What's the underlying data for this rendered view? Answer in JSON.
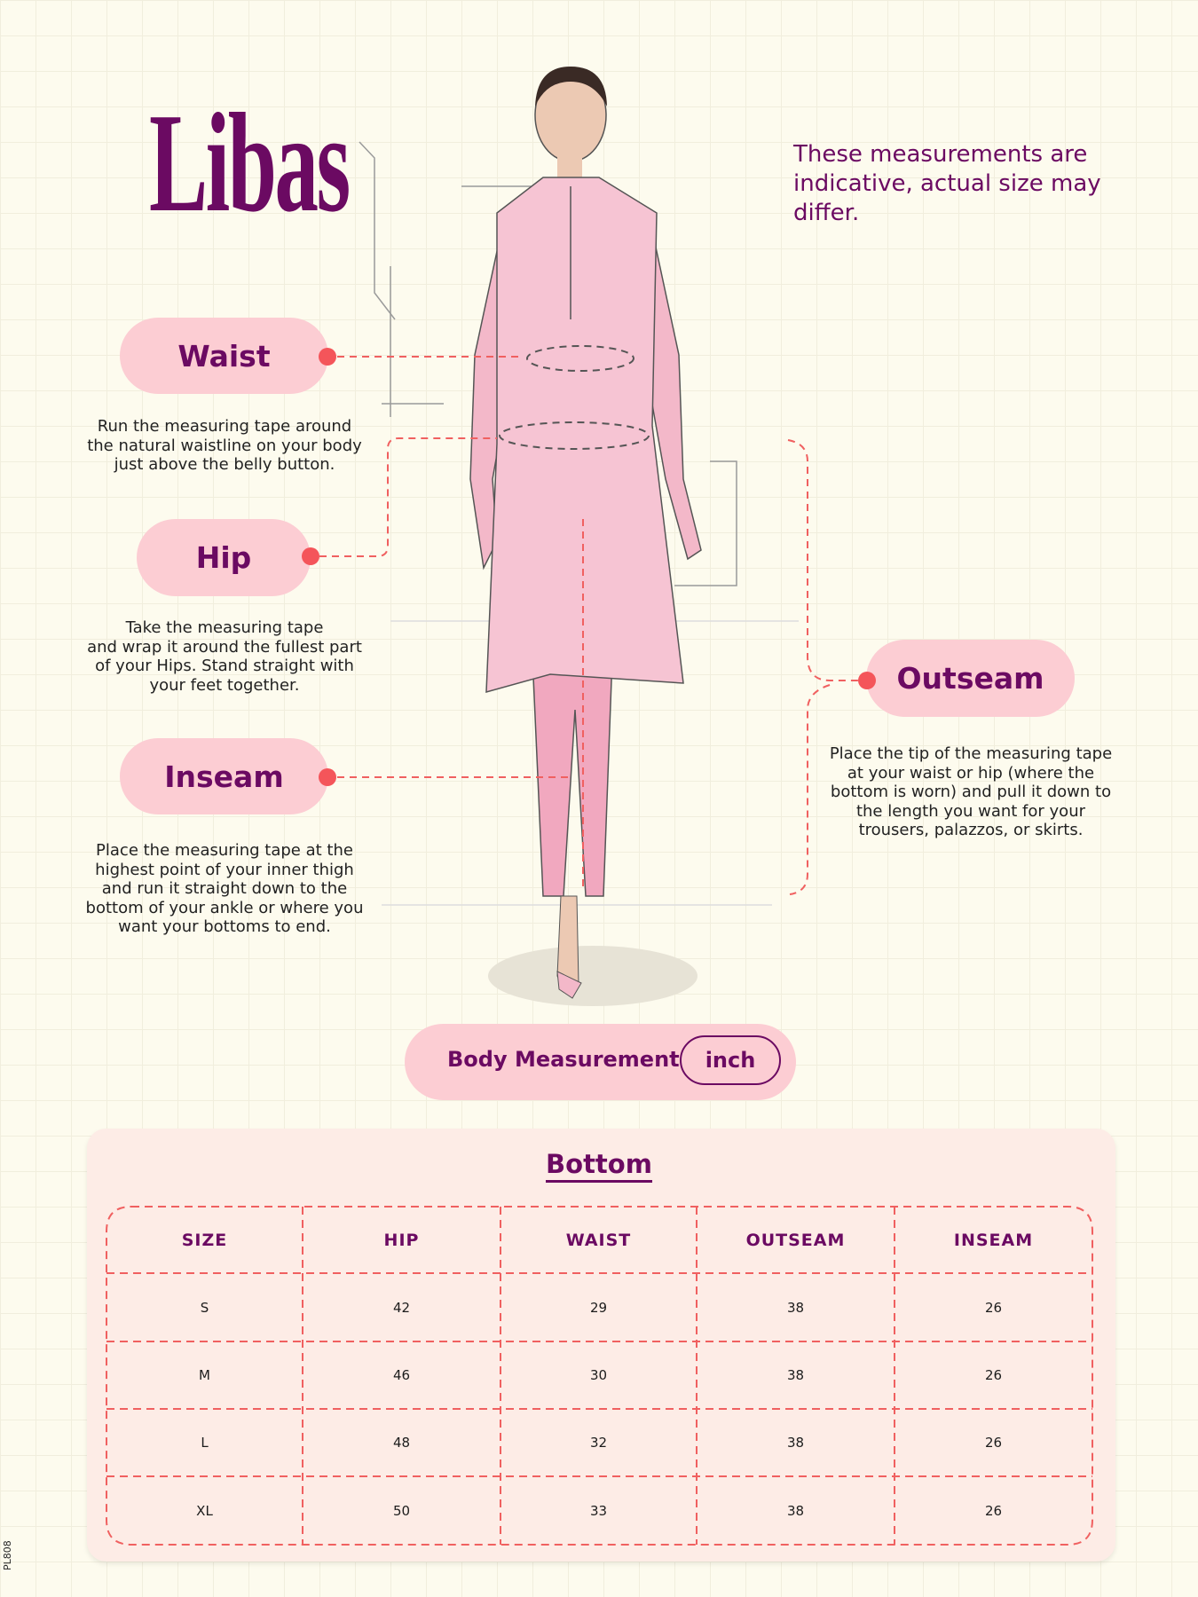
{
  "brand": {
    "logo_text": "Libas",
    "color": "#6b0a62"
  },
  "note": "These measurements are indicative, actual size may differ.",
  "callouts": [
    {
      "label": "Waist",
      "description": "Run the measuring tape around\nthe natural waistline on your body\njust above the belly button."
    },
    {
      "label": "Hip",
      "description": "Take the measuring tape\nand wrap it around the fullest part\nof your Hips. Stand straight with\nyour feet together."
    },
    {
      "label": "Inseam",
      "description": "Place the measuring tape at the\nhighest point of your inner thigh\nand run it straight down to the\nbottom of your ankle or where you\nwant your bottoms to end."
    },
    {
      "label": "Outseam",
      "description": "Place the tip of the measuring tape\nat your waist or hip (where the\nbottom is worn) and pull it down to\nthe length you want for your\ntrousers, palazzos, or skirts."
    }
  ],
  "measurement": {
    "label": "Body Measurement",
    "unit": "inch"
  },
  "table": {
    "title": "Bottom",
    "headers": [
      "SIZE",
      "HIP",
      "WAIST",
      "OUTSEAM",
      "INSEAM"
    ],
    "rows": [
      [
        "S",
        "42",
        "29",
        "38",
        "26"
      ],
      [
        "M",
        "46",
        "30",
        "38",
        "26"
      ],
      [
        "L",
        "48",
        "32",
        "38",
        "26"
      ],
      [
        "XL",
        "50",
        "33",
        "38",
        "26"
      ]
    ]
  },
  "product_code": "PL808",
  "colors": {
    "pill": "#fccdd3",
    "accent_dot": "#f4555a",
    "card": "#fdece6",
    "dash": "#f06060"
  }
}
